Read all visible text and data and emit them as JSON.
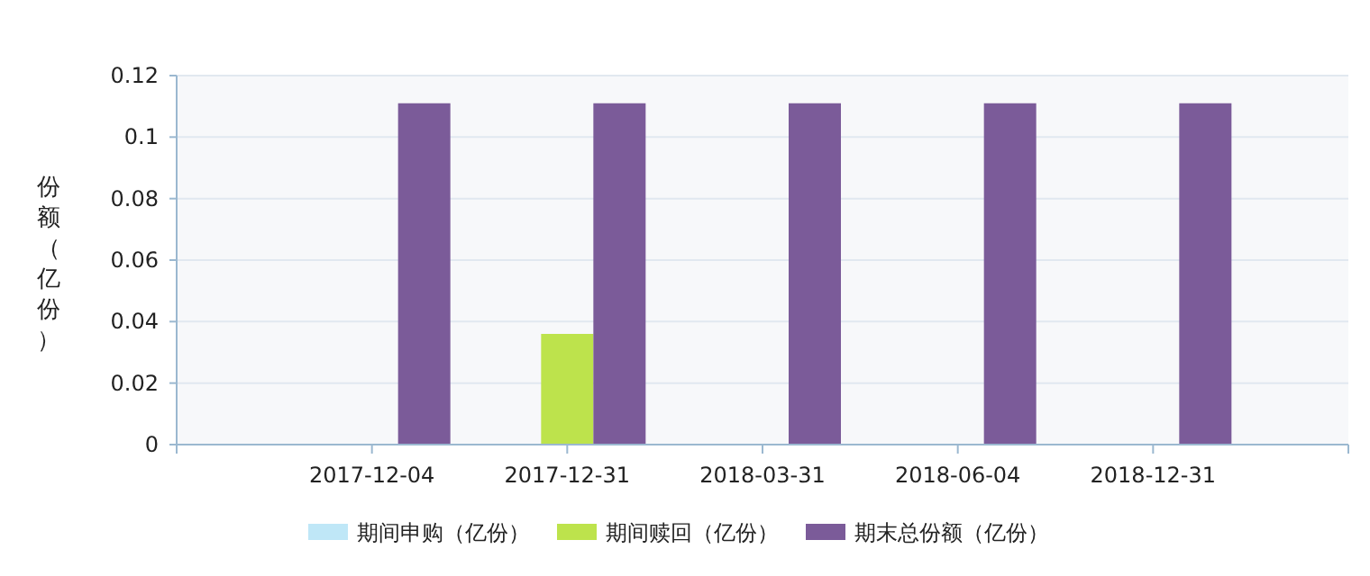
{
  "chart_data": {
    "type": "bar",
    "ylabel": "份额（亿份）",
    "categories": [
      "2017-12-04",
      "2017-12-31",
      "2018-03-31",
      "2018-06-04",
      "2018-12-31"
    ],
    "series": [
      {
        "name": "期间申购（亿份）",
        "color": "#bfe7f7",
        "values": [
          0,
          0,
          0,
          0,
          0
        ]
      },
      {
        "name": "期间赎回（亿份）",
        "color": "#bde34c",
        "values": [
          0,
          0.036,
          0,
          0,
          0
        ]
      },
      {
        "name": "期末总份额（亿份）",
        "color": "#7b5b99",
        "values": [
          0.111,
          0.111,
          0.111,
          0.111,
          0.111
        ]
      }
    ],
    "ylim": [
      0,
      0.12
    ],
    "yticks": [
      0,
      0.02,
      0.04,
      0.06,
      0.08,
      0.1,
      0.12
    ],
    "grid": "y",
    "legend": "bottom"
  }
}
